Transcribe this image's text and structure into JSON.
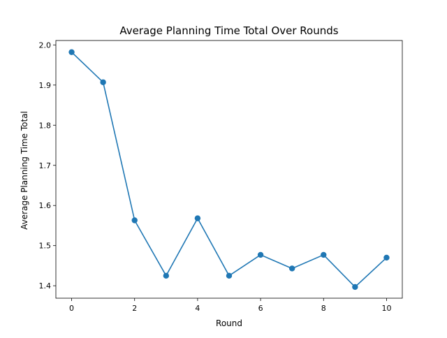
{
  "chart_data": {
    "type": "line",
    "title": "Average Planning Time Total Over Rounds",
    "xlabel": "Round",
    "ylabel": "Average Planning Time Total",
    "x": [
      0,
      1,
      2,
      3,
      4,
      5,
      6,
      7,
      8,
      9,
      10
    ],
    "series": [
      {
        "values": [
          1.982,
          1.907,
          1.563,
          1.425,
          1.568,
          1.425,
          1.477,
          1.443,
          1.477,
          1.397,
          1.47
        ],
        "color": "#1f77b4",
        "marker": "circle"
      }
    ],
    "xlim": [
      -0.5,
      10.5
    ],
    "ylim": [
      1.369,
      2.011
    ],
    "xticks": [
      0,
      2,
      4,
      6,
      8,
      10
    ],
    "yticks": [
      1.4,
      1.5,
      1.6,
      1.7,
      1.8,
      1.9,
      2.0
    ],
    "xtick_labels": [
      "0",
      "2",
      "4",
      "6",
      "8",
      "10"
    ],
    "ytick_labels": [
      "1.4",
      "1.5",
      "1.6",
      "1.7",
      "1.8",
      "1.9",
      "2.0"
    ],
    "grid": false,
    "legend": "none"
  }
}
